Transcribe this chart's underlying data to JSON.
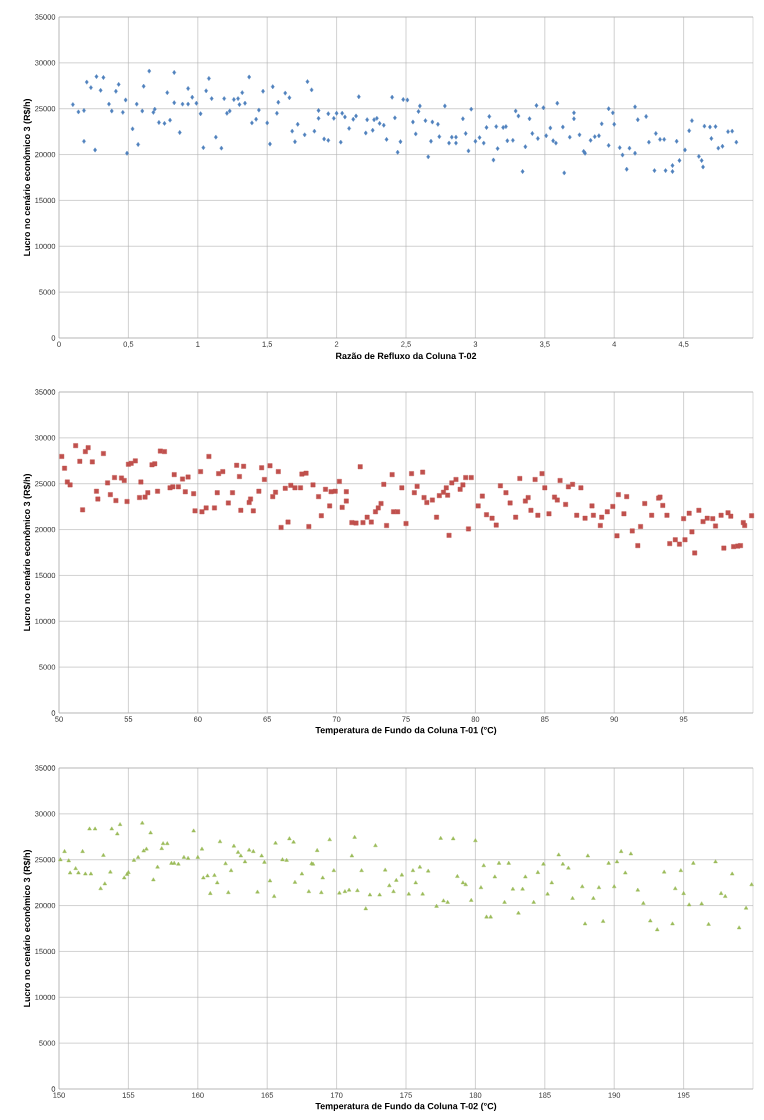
{
  "chart_data": [
    {
      "type": "scatter",
      "xlabel": "Razão de Refluxo da Coluna T-02",
      "ylabel": "Lucro no cenário econômico 3 (R$/h)",
      "color": "#4f81bd",
      "marker": "diamond",
      "grid": true,
      "xlim": [
        0,
        5
      ],
      "ylim": [
        0,
        35000
      ],
      "xticks": [
        0,
        {
          "value": 0.5,
          "label": "0,5"
        },
        1,
        {
          "value": 1.5,
          "label": "1,5"
        },
        2,
        {
          "value": 2.5,
          "label": "2,5"
        },
        3,
        {
          "value": 3.5,
          "label": "3,5"
        },
        4,
        {
          "value": 4.5,
          "label": "4,5"
        }
      ],
      "yticks": [
        0,
        5000,
        10000,
        15000,
        20000,
        25000,
        30000,
        35000
      ],
      "x": [
        0.1,
        0.14,
        0.18,
        0.18,
        0.2,
        0.23,
        0.26,
        0.27,
        0.3,
        0.32,
        0.36,
        0.38,
        0.41,
        0.43,
        0.46,
        0.48,
        0.49,
        0.53,
        0.56,
        0.57,
        0.61,
        0.6,
        0.65,
        0.68,
        0.69,
        0.72,
        0.76,
        0.78,
        0.8,
        0.83,
        0.83,
        0.87,
        0.89,
        0.93,
        0.93,
        0.96,
        0.99,
        1.02,
        1.04,
        1.06,
        1.08,
        1.1,
        1.13,
        1.17,
        1.19,
        1.21,
        1.23,
        1.26,
        1.29,
        1.3,
        1.32,
        1.34,
        1.37,
        1.39,
        1.42,
        1.44,
        1.47,
        1.5,
        1.52,
        1.54,
        1.57,
        1.58,
        1.63,
        1.66,
        1.68,
        1.7,
        1.72,
        1.77,
        1.79,
        1.82,
        1.84,
        1.87,
        1.87,
        1.91,
        1.94,
        1.94,
        1.98,
        2.0,
        2.03,
        2.04,
        2.06,
        2.09,
        2.12,
        2.14,
        2.16,
        2.21,
        2.22,
        2.26,
        2.27,
        2.29,
        2.31,
        2.34,
        2.36,
        2.4,
        2.42,
        2.44,
        2.46,
        2.48,
        2.51,
        2.55,
        2.57,
        2.59,
        2.6,
        2.64,
        2.66,
        2.68,
        2.69,
        2.73,
        2.74,
        2.78,
        2.81,
        2.83,
        2.86,
        2.86,
        2.91,
        2.93,
        2.95,
        2.97,
        3.0,
        3.03,
        3.06,
        3.08,
        3.1,
        3.13,
        3.15,
        3.16,
        3.2,
        3.22,
        3.23,
        3.27,
        3.29,
        3.31,
        3.34,
        3.36,
        3.39,
        3.41,
        3.44,
        3.45,
        3.49,
        3.51,
        3.54,
        3.56,
        3.58,
        3.59,
        3.63,
        3.64,
        3.68,
        3.71,
        3.71,
        3.75,
        3.78,
        3.79,
        3.83,
        3.86,
        3.89,
        3.91,
        3.96,
        3.96,
        3.99,
        4.0,
        4.04,
        4.06,
        4.09,
        4.11,
        4.15,
        4.15,
        4.17,
        4.23,
        4.25,
        4.29,
        4.3,
        4.33,
        4.36,
        4.37,
        4.42,
        4.42,
        4.45,
        4.47,
        4.51,
        4.54,
        4.56,
        4.61,
        4.63,
        4.64,
        4.65,
        4.69,
        4.7,
        4.73,
        4.75,
        4.78,
        4.82,
        4.85,
        4.88
      ],
      "values": [
        25450,
        24650,
        24800,
        21440,
        27900,
        27300,
        20500,
        28500,
        27000,
        28400,
        25500,
        24750,
        26900,
        27650,
        24600,
        25950,
        20150,
        22800,
        25500,
        21100,
        27450,
        24750,
        29100,
        24600,
        24950,
        23500,
        23400,
        26750,
        23750,
        28950,
        25650,
        22400,
        25500,
        27200,
        25500,
        26250,
        25600,
        24450,
        20750,
        26950,
        28300,
        26100,
        21900,
        20700,
        26100,
        24500,
        24750,
        26000,
        26100,
        25450,
        26750,
        25600,
        28450,
        23450,
        23850,
        24850,
        26900,
        23450,
        21150,
        27400,
        24500,
        25700,
        26700,
        26200,
        22550,
        21400,
        23300,
        22150,
        27950,
        27050,
        22550,
        24800,
        23950,
        21700,
        21550,
        24450,
        23950,
        24500,
        21350,
        24500,
        24100,
        22850,
        23850,
        24200,
        26300,
        22350,
        23800,
        22650,
        23800,
        23950,
        23400,
        23200,
        21650,
        26250,
        24000,
        20250,
        21400,
        26000,
        25950,
        23550,
        22250,
        24700,
        25300,
        23700,
        19750,
        21450,
        23550,
        23300,
        21950,
        25300,
        21250,
        21900,
        21900,
        21250,
        23900,
        22300,
        20400,
        24950,
        21450,
        21850,
        21250,
        22950,
        24150,
        19400,
        23050,
        20650,
        22950,
        23050,
        21500,
        21550,
        24750,
        24200,
        18150,
        20850,
        23900,
        22300,
        25350,
        21750,
        25100,
        22050,
        22900,
        21500,
        21250,
        25600,
        23000,
        18000,
        21900,
        24550,
        23900,
        22150,
        20350,
        20150,
        21550,
        21950,
        22050,
        23350,
        21000,
        25000,
        24550,
        23300,
        20750,
        19950,
        18400,
        20700,
        20150,
        25200,
        23800,
        24150,
        21350,
        18250,
        22300,
        21650,
        21650,
        18250,
        18150,
        18800,
        21450,
        19350,
        20500,
        22600,
        23700,
        19800,
        19350,
        18650,
        23100,
        23000,
        21750,
        23050,
        20700,
        20900,
        22500,
        22550,
        21350
      ]
    },
    {
      "type": "scatter",
      "xlabel": "Temperatura de Fundo da Coluna T-01 (°C)",
      "ylabel": "Lucro no cenário econômico 3 (R$/h)",
      "color": "#c0504d",
      "marker": "square",
      "grid": true,
      "xlim": [
        50,
        100
      ],
      "ylim": [
        0,
        35000
      ],
      "xticks": [
        50,
        55,
        60,
        65,
        70,
        75,
        80,
        85,
        90,
        95
      ],
      "yticks": [
        0,
        5000,
        10000,
        15000,
        20000,
        25000,
        30000,
        35000
      ],
      "x": [
        50.2,
        50.4,
        50.6,
        50.8,
        51.2,
        51.5,
        51.7,
        51.9,
        52.1,
        52.4,
        52.7,
        52.8,
        53.2,
        53.5,
        53.7,
        54.0,
        54.1,
        54.5,
        54.7,
        54.9,
        55.0,
        55.2,
        55.5,
        55.8,
        55.9,
        56.2,
        56.4,
        56.7,
        56.9,
        57.1,
        57.3,
        57.6,
        58.0,
        58.2,
        58.3,
        58.6,
        58.9,
        59.1,
        59.3,
        59.7,
        59.8,
        60.2,
        60.3,
        60.6,
        60.8,
        61.2,
        61.4,
        61.5,
        61.8,
        62.2,
        62.5,
        62.8,
        63.0,
        63.1,
        63.3,
        63.7,
        63.8,
        64.0,
        64.4,
        64.6,
        64.8,
        65.2,
        65.4,
        65.6,
        65.8,
        66.0,
        66.3,
        66.5,
        66.7,
        67.0,
        67.4,
        67.5,
        67.8,
        68.0,
        68.3,
        68.7,
        68.9,
        69.2,
        69.5,
        69.6,
        69.9,
        70.2,
        70.4,
        70.7,
        70.7,
        71.1,
        71.4,
        71.7,
        71.9,
        72.2,
        72.5,
        72.8,
        73.0,
        73.2,
        73.4,
        73.6,
        74.0,
        74.1,
        74.4,
        74.7,
        75.0,
        75.4,
        75.6,
        75.8,
        76.2,
        76.3,
        76.5,
        76.9,
        77.2,
        77.4,
        77.7,
        77.9,
        78.0,
        78.1,
        78.3,
        78.6,
        78.9,
        79.1,
        79.3,
        79.5,
        79.7,
        80.2,
        80.5,
        80.8,
        81.2,
        81.5,
        81.8,
        82.2,
        82.5,
        82.9,
        83.2,
        83.6,
        83.8,
        84.0,
        84.3,
        84.5,
        84.8,
        85.0,
        85.3,
        85.7,
        85.9,
        86.1,
        86.5,
        86.7,
        87.0,
        87.3,
        87.6,
        87.9,
        88.4,
        88.5,
        89.0,
        89.1,
        89.5,
        89.9,
        90.2,
        90.3,
        90.7,
        90.9,
        91.3,
        91.7,
        91.9,
        92.2,
        92.7,
        93.2,
        93.3,
        93.5,
        93.8,
        94.0,
        94.4,
        94.7,
        95.0,
        95.1,
        95.4,
        95.6,
        95.8,
        96.1,
        96.4,
        96.7,
        97.1,
        97.3,
        97.7,
        97.9,
        98.2,
        98.4,
        98.6,
        98.9,
        99.1,
        99.3,
        99.4,
        99.9
      ],
      "values": [
        27970,
        26690,
        25190,
        24870,
        29150,
        27440,
        22150,
        28500,
        28930,
        27380,
        24180,
        23330,
        28290,
        25090,
        23810,
        25670,
        23160,
        25620,
        25350,
        23060,
        27120,
        27220,
        27490,
        23490,
        25190,
        23540,
        24020,
        27060,
        27170,
        24180,
        28560,
        28500,
        24550,
        24660,
        25990,
        24660,
        25510,
        24120,
        25730,
        23910,
        22040,
        26320,
        21940,
        22360,
        27970,
        22360,
        24020,
        26100,
        26320,
        22900,
        24020,
        27010,
        25780,
        22100,
        26900,
        22950,
        23330,
        22040,
        24180,
        26740,
        25460,
        26960,
        23590,
        24070,
        26320,
        20230,
        24500,
        20820,
        24820,
        24550,
        24550,
        26050,
        26150,
        20330,
        24870,
        23590,
        21510,
        24390,
        22580,
        24130,
        24180,
        25250,
        22420,
        24130,
        23110,
        20760,
        20710,
        26850,
        20760,
        21350,
        20820,
        21940,
        22360,
        22840,
        24930,
        20440,
        25990,
        21940,
        21940,
        24550,
        20660,
        26100,
        24020,
        24710,
        26260,
        23490,
        22950,
        23220,
        21350,
        23700,
        24070,
        24550,
        23750,
        19370,
        25090,
        25460,
        24390,
        24870,
        25670,
        20070,
        25670,
        22580,
        23650,
        21620,
        21240,
        20490,
        24770,
        24020,
        22900,
        21350,
        25570,
        23110,
        23490,
        22100,
        25460,
        21560,
        26100,
        24550,
        21720,
        23540,
        23220,
        25350,
        22740,
        24660,
        24930,
        21560,
        24550,
        21240,
        22580,
        21560,
        20440,
        21350,
        21940,
        22520,
        19320,
        23810,
        21720,
        23590,
        19850,
        18250,
        20330,
        22840,
        21560,
        23430,
        23540,
        22630,
        21560,
        18470,
        18890,
        18410,
        21190,
        18890,
        21780,
        19750,
        17450,
        22100,
        20870,
        21240,
        21190,
        20390,
        21560,
        17980,
        21830,
        21460,
        18140,
        18200,
        18250,
        20760,
        20440,
        21510
      ]
    },
    {
      "type": "scatter",
      "xlabel": "Temperatura de Fundo da Coluna T-02 (°C)",
      "ylabel": "Lucro no cenário econômico 3 (R$/h)",
      "color": "#9bbb59",
      "marker": "triangle",
      "grid": true,
      "xlim": [
        150,
        200
      ],
      "ylim": [
        0,
        35000
      ],
      "xticks": [
        150,
        155,
        160,
        165,
        170,
        175,
        180,
        185,
        190,
        195
      ],
      "yticks": [
        0,
        5000,
        10000,
        15000,
        20000,
        25000,
        30000,
        35000
      ],
      "x": [
        150.1,
        150.4,
        150.7,
        150.8,
        151.2,
        151.4,
        151.7,
        151.9,
        152.2,
        152.3,
        152.6,
        153.0,
        153.2,
        153.3,
        153.7,
        153.8,
        154.2,
        154.4,
        154.7,
        154.9,
        155.0,
        155.4,
        155.7,
        156.0,
        156.1,
        156.3,
        156.6,
        156.8,
        157.1,
        157.4,
        157.5,
        157.8,
        158.1,
        158.3,
        158.6,
        159.0,
        159.3,
        159.7,
        160.0,
        160.3,
        160.4,
        160.7,
        160.9,
        161.2,
        161.4,
        161.6,
        162.0,
        162.2,
        162.4,
        162.6,
        162.9,
        163.1,
        163.4,
        163.7,
        164.0,
        164.3,
        164.6,
        164.8,
        165.2,
        165.5,
        165.6,
        166.1,
        166.4,
        166.6,
        166.9,
        167.0,
        167.5,
        168.0,
        168.2,
        168.3,
        168.6,
        168.9,
        169.0,
        169.5,
        169.8,
        170.2,
        170.6,
        170.9,
        171.1,
        171.3,
        171.5,
        171.8,
        172.1,
        172.4,
        172.8,
        173.1,
        173.5,
        173.8,
        174.1,
        174.3,
        174.7,
        175.2,
        175.5,
        175.7,
        176.0,
        176.2,
        176.6,
        177.2,
        177.5,
        177.7,
        178.0,
        178.4,
        178.7,
        179.1,
        179.3,
        179.7,
        180.0,
        180.4,
        180.6,
        180.8,
        181.1,
        181.4,
        181.7,
        182.1,
        182.4,
        182.7,
        183.1,
        183.4,
        183.6,
        184.2,
        184.5,
        184.9,
        185.2,
        185.5,
        186.0,
        186.3,
        186.7,
        187.0,
        187.7,
        187.9,
        188.1,
        188.5,
        188.9,
        189.2,
        189.6,
        190.0,
        190.2,
        190.5,
        190.8,
        191.2,
        191.7,
        192.1,
        192.6,
        193.1,
        193.6,
        194.2,
        194.4,
        194.8,
        195.0,
        195.4,
        195.7,
        196.3,
        196.8,
        197.3,
        197.7,
        198.0,
        198.5,
        199.0,
        199.5,
        199.9
      ],
      "values": [
        24990,
        25890,
        24880,
        23550,
        24030,
        23550,
        25890,
        23440,
        28350,
        23440,
        28350,
        21840,
        25470,
        22370,
        23650,
        28350,
        27810,
        28830,
        23010,
        23390,
        23600,
        24930,
        25250,
        28990,
        25950,
        26160,
        27920,
        22800,
        24190,
        26210,
        26750,
        26750,
        24610,
        24610,
        24510,
        25250,
        25150,
        28130,
        25250,
        26160,
        23010,
        23230,
        21310,
        23280,
        22480,
        26960,
        24560,
        21410,
        23810,
        26480,
        25790,
        25410,
        24770,
        26050,
        25890,
        21470,
        25410,
        24720,
        22690,
        20990,
        26800,
        24990,
        24930,
        27280,
        26910,
        22530,
        23440,
        21520,
        24560,
        24510,
        26000,
        21410,
        23010,
        27180,
        23810,
        21360,
        21520,
        21680,
        25410,
        27440,
        21630,
        23810,
        19650,
        21150,
        26530,
        21150,
        23870,
        22160,
        21520,
        22750,
        23330,
        21250,
        23810,
        22480,
        24190,
        21250,
        23760,
        19920,
        27330,
        20510,
        20350,
        27280,
        23170,
        22480,
        22270,
        20560,
        27070,
        21950,
        24350,
        18750,
        18750,
        23120,
        24610,
        20350,
        24610,
        21790,
        19170,
        21790,
        23120,
        20350,
        23600,
        24510,
        21250,
        22480,
        25520,
        24510,
        24080,
        20780,
        22050,
        18000,
        25410,
        20780,
        21950,
        18270,
        24610,
        22050,
        24770,
        25890,
        23550,
        25630,
        21680,
        20240,
        18320,
        17360,
        23650,
        18000,
        21840,
        23810,
        21310,
        20080,
        24610,
        20190,
        17950,
        24770,
        21310,
        20990,
        23440,
        17570,
        19710,
        22270
      ]
    }
  ]
}
